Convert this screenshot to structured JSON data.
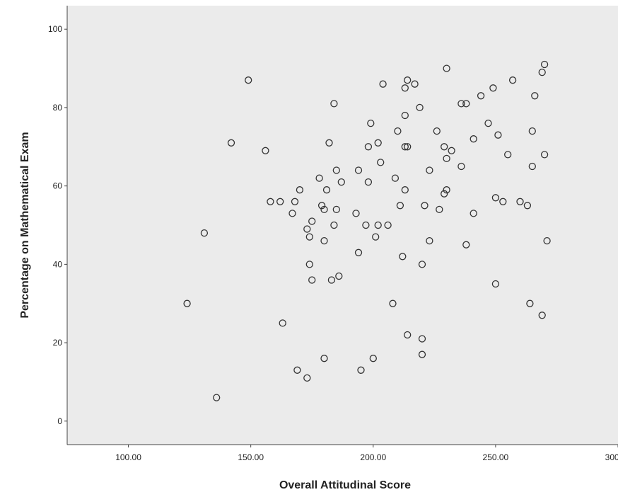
{
  "chart_data": {
    "type": "scatter",
    "title": "",
    "xlabel": "Overall Attitudinal Score",
    "ylabel": "Percentage on Mathematical Exam",
    "xlim": [
      75,
      300
    ],
    "ylim": [
      -6,
      106
    ],
    "x_ticks": [
      100,
      150,
      200,
      250,
      300
    ],
    "x_tick_labels": [
      "100.00",
      "150.00",
      "200.00",
      "250.00",
      "300.00"
    ],
    "y_ticks": [
      0,
      20,
      40,
      60,
      80,
      100
    ],
    "y_tick_labels": [
      "0",
      "20",
      "40",
      "60",
      "80",
      "100"
    ],
    "grid": false,
    "plot_background": "#ebebeb",
    "marker": "open-circle",
    "marker_color": "#333333",
    "points": [
      [
        124,
        30
      ],
      [
        131,
        48
      ],
      [
        136,
        6
      ],
      [
        142,
        71
      ],
      [
        149,
        87
      ],
      [
        156,
        69
      ],
      [
        158,
        56
      ],
      [
        162,
        56
      ],
      [
        163,
        25
      ],
      [
        167,
        53
      ],
      [
        168,
        56
      ],
      [
        169,
        13
      ],
      [
        170,
        59
      ],
      [
        173,
        49
      ],
      [
        173,
        11
      ],
      [
        174,
        40
      ],
      [
        174,
        47
      ],
      [
        175,
        51
      ],
      [
        175,
        36
      ],
      [
        178,
        62
      ],
      [
        179,
        55
      ],
      [
        180,
        16
      ],
      [
        180,
        54
      ],
      [
        180,
        46
      ],
      [
        181,
        59
      ],
      [
        182,
        71
      ],
      [
        183,
        36
      ],
      [
        184,
        81
      ],
      [
        184,
        50
      ],
      [
        185,
        64
      ],
      [
        185,
        54
      ],
      [
        186,
        37
      ],
      [
        187,
        61
      ],
      [
        193,
        53
      ],
      [
        194,
        64
      ],
      [
        194,
        43
      ],
      [
        195,
        13
      ],
      [
        197,
        50
      ],
      [
        198,
        70
      ],
      [
        198,
        61
      ],
      [
        199,
        76
      ],
      [
        200,
        16
      ],
      [
        201,
        47
      ],
      [
        202,
        71
      ],
      [
        202,
        50
      ],
      [
        203,
        66
      ],
      [
        204,
        86
      ],
      [
        206,
        50
      ],
      [
        208,
        30
      ],
      [
        209,
        62
      ],
      [
        210,
        74
      ],
      [
        211,
        55
      ],
      [
        212,
        42
      ],
      [
        213,
        85
      ],
      [
        213,
        78
      ],
      [
        213,
        70
      ],
      [
        213,
        59
      ],
      [
        214,
        70
      ],
      [
        214,
        87
      ],
      [
        214,
        22
      ],
      [
        217,
        86
      ],
      [
        219,
        80
      ],
      [
        220,
        21
      ],
      [
        220,
        17
      ],
      [
        220,
        40
      ],
      [
        221,
        55
      ],
      [
        223,
        46
      ],
      [
        223,
        64
      ],
      [
        226,
        74
      ],
      [
        227,
        54
      ],
      [
        229,
        58
      ],
      [
        229,
        70
      ],
      [
        230,
        59
      ],
      [
        230,
        67
      ],
      [
        230,
        90
      ],
      [
        232,
        69
      ],
      [
        236,
        81
      ],
      [
        236,
        65
      ],
      [
        238,
        81
      ],
      [
        238,
        45
      ],
      [
        241,
        72
      ],
      [
        241,
        53
      ],
      [
        244,
        83
      ],
      [
        247,
        76
      ],
      [
        249,
        85
      ],
      [
        250,
        57
      ],
      [
        250,
        35
      ],
      [
        251,
        73
      ],
      [
        253,
        56
      ],
      [
        255,
        68
      ],
      [
        257,
        87
      ],
      [
        260,
        56
      ],
      [
        263,
        55
      ],
      [
        264,
        30
      ],
      [
        265,
        65
      ],
      [
        265,
        74
      ],
      [
        266,
        83
      ],
      [
        269,
        89
      ],
      [
        269,
        27
      ],
      [
        270,
        91
      ],
      [
        270,
        68
      ],
      [
        271,
        46
      ]
    ]
  }
}
